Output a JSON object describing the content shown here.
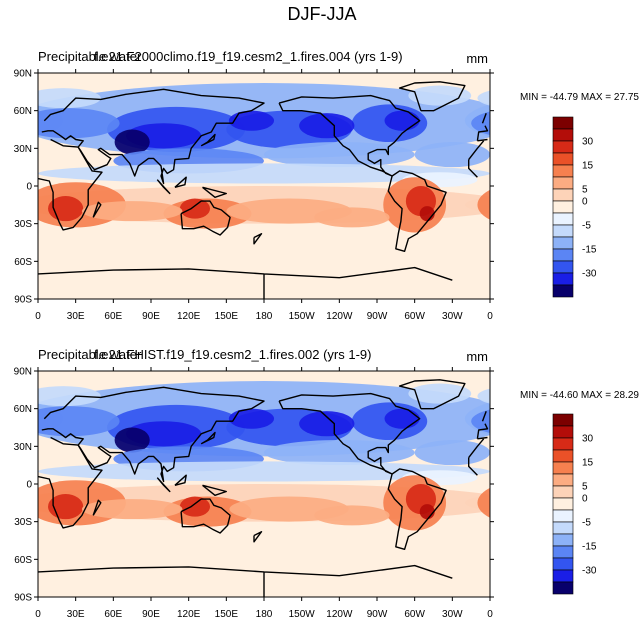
{
  "figure": {
    "title": "DJF-JJA"
  },
  "colors": {
    "scale": [
      "#08006b",
      "#1a1ee6",
      "#3355f0",
      "#5b85f4",
      "#8db2f7",
      "#c4dafb",
      "#eaf3ff",
      "#fff0e0",
      "#fdd3b8",
      "#fcac82",
      "#f6804f",
      "#ea5128",
      "#d72a17",
      "#b30d09",
      "#7c0000"
    ],
    "land_outline": "#000000"
  },
  "panels": [
    {
      "case_label": "Precipitable water",
      "case_name": "f.e21.F2000climo.f19_f19.cesm2_1.fires.004 (yrs 1-9)",
      "units": "mm",
      "stats": "MIN = -44.79 MAX =  27.75",
      "map_data": {
        "field": "Precipitable water",
        "season_difference": "DJF-JJA",
        "min": -44.79,
        "max": 27.75,
        "lat_ticks": [
          "90N",
          "60N",
          "30N",
          "0",
          "30S",
          "60S",
          "90S"
        ],
        "lon_ticks": [
          "0",
          "30E",
          "60E",
          "90E",
          "120E",
          "150E",
          "180",
          "150W",
          "120W",
          "90W",
          "60W",
          "30W",
          "0"
        ]
      },
      "colorbar": {
        "labels": [
          "30",
          "15",
          "5",
          "0",
          "-5",
          "-15",
          "-30"
        ]
      }
    },
    {
      "case_label": "Precipitable water",
      "case_name": "f.e21.FHIST.f19_f19.cesm2_1.fires.002 (yrs 1-9)",
      "units": "mm",
      "stats": "MIN = -44.60 MAX =  28.29",
      "map_data": {
        "field": "Precipitable water",
        "season_difference": "DJF-JJA",
        "min": -44.6,
        "max": 28.29,
        "lat_ticks": [
          "90N",
          "60N",
          "30N",
          "0",
          "30S",
          "60S",
          "90S"
        ],
        "lon_ticks": [
          "0",
          "30E",
          "60E",
          "90E",
          "120E",
          "150E",
          "180",
          "150W",
          "120W",
          "90W",
          "60W",
          "30W",
          "0"
        ]
      },
      "colorbar": {
        "labels": [
          "30",
          "15",
          "5",
          "0",
          "-5",
          "-15",
          "-30"
        ]
      }
    }
  ]
}
